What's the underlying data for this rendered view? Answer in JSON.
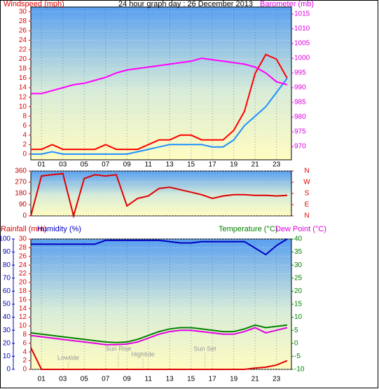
{
  "chart_data": [
    {
      "type": "line",
      "title": "24 hour graph day : 26 December 2013",
      "y_label": "Windspeed (mph)",
      "y2_label": "Barometer (mb)",
      "x": [
        0,
        1,
        2,
        3,
        4,
        5,
        6,
        7,
        8,
        9,
        10,
        11,
        12,
        13,
        14,
        15,
        16,
        17,
        18,
        19,
        20,
        21,
        22,
        23,
        24
      ],
      "xlim": [
        0,
        24.4
      ],
      "xticks": [
        {
          "value": 1,
          "label": "01"
        },
        {
          "value": 3,
          "label": "03"
        },
        {
          "value": 5,
          "label": "05"
        },
        {
          "value": 7,
          "label": "07"
        },
        {
          "value": 9,
          "label": "09"
        },
        {
          "value": 11,
          "label": "11"
        },
        {
          "value": 13,
          "label": "13"
        },
        {
          "value": 15,
          "label": "15"
        },
        {
          "value": 17,
          "label": "17"
        },
        {
          "value": 19,
          "label": "19"
        },
        {
          "value": 21,
          "label": "21"
        },
        {
          "value": 23,
          "label": "23"
        }
      ],
      "ylim": [
        -1.2,
        31
      ],
      "yticks": [
        0,
        2,
        4,
        6,
        8,
        10,
        12,
        14,
        16,
        18,
        20,
        22,
        24,
        26,
        28,
        30
      ],
      "y2lim": [
        965.5,
        1017.4
      ],
      "y2ticks": [
        970,
        975,
        980,
        985,
        990,
        995,
        1000,
        1005,
        1010,
        1015
      ],
      "axis_colors": {
        "y": "#e00000",
        "y2": "#e000e0"
      },
      "grid": true,
      "series": [
        {
          "color": "#ff0000",
          "values": [
            1,
            1,
            2,
            1,
            1,
            1,
            1,
            2,
            1,
            1,
            1,
            2,
            3,
            3,
            4,
            4,
            3,
            3,
            3,
            5,
            9,
            17,
            21,
            20,
            16
          ]
        },
        {
          "color": "#1e90ff",
          "values": [
            0,
            0,
            0.5,
            0,
            0,
            0,
            0,
            0,
            0,
            0,
            0.5,
            1,
            1.5,
            2,
            2,
            2,
            2,
            1.5,
            1.5,
            3,
            6,
            8,
            10,
            13,
            16
          ]
        },
        {
          "color": "#ff00ff",
          "axis": "y2",
          "values": [
            988,
            988,
            989,
            990,
            991,
            991.5,
            992.5,
            993.5,
            995,
            996,
            996.5,
            997,
            997.5,
            998,
            998.5,
            999,
            1000,
            999.5,
            999,
            998.5,
            998,
            997,
            995,
            992,
            991
          ]
        }
      ]
    },
    {
      "type": "line",
      "x": [
        0,
        1,
        2,
        3,
        4,
        5,
        6,
        7,
        8,
        9,
        10,
        11,
        12,
        13,
        14,
        15,
        16,
        17,
        18,
        19,
        20,
        21,
        22,
        23,
        24
      ],
      "xlim": [
        0,
        24.4
      ],
      "ylim": [
        0,
        360
      ],
      "yticks": [
        0,
        90,
        180,
        270,
        360
      ],
      "y2lim": [
        0,
        360
      ],
      "y2ticks": [
        {
          "value": 360,
          "label": "N"
        },
        {
          "value": 270,
          "label": "W"
        },
        {
          "value": 180,
          "label": "S"
        },
        {
          "value": 90,
          "label": "E"
        },
        {
          "value": 0,
          "label": "N"
        }
      ],
      "axis_colors": {
        "y": "#c00000",
        "y2": "#e00000"
      },
      "grid": true,
      "series": [
        {
          "color": "#e00000",
          "values": [
            0,
            320,
            330,
            340,
            0,
            300,
            330,
            320,
            330,
            80,
            140,
            160,
            220,
            230,
            210,
            190,
            170,
            140,
            160,
            170,
            170,
            165,
            165,
            160,
            165
          ]
        }
      ]
    },
    {
      "type": "line",
      "x": [
        0,
        1,
        2,
        3,
        4,
        5,
        6,
        7,
        8,
        9,
        10,
        11,
        12,
        13,
        14,
        15,
        16,
        17,
        18,
        19,
        20,
        21,
        22,
        23,
        24
      ],
      "xlim": [
        0,
        24.4
      ],
      "xticks": [
        {
          "value": 1,
          "label": "01"
        },
        {
          "value": 3,
          "label": "03"
        },
        {
          "value": 5,
          "label": "05"
        },
        {
          "value": 7,
          "label": "07"
        },
        {
          "value": 9,
          "label": "09"
        },
        {
          "value": 11,
          "label": "11"
        },
        {
          "value": 13,
          "label": "13"
        },
        {
          "value": 15,
          "label": "15"
        },
        {
          "value": 17,
          "label": "17"
        },
        {
          "value": 19,
          "label": "19"
        },
        {
          "value": 21,
          "label": "21"
        },
        {
          "value": 23,
          "label": "23"
        }
      ],
      "ylim": [
        0,
        30
      ],
      "yticks": [
        0,
        2,
        4,
        6,
        8,
        10,
        12,
        14,
        16,
        18,
        20,
        22,
        24,
        26,
        28,
        30
      ],
      "y2lim": [
        -10,
        40
      ],
      "y2ticks": [
        -10,
        -5,
        0,
        5,
        10,
        15,
        20,
        25,
        30,
        35,
        40
      ],
      "y3lim": [
        0,
        100
      ],
      "y3ticks": [
        0,
        10,
        20,
        30,
        40,
        50,
        60,
        70,
        80,
        90,
        100
      ],
      "axis_colors": {
        "y": "#e00000",
        "y2": "#008000",
        "y3": "#0000c0"
      },
      "grid": true,
      "series": [
        {
          "name": "Rainfall (mm)",
          "color": "#e00000",
          "values": [
            5,
            0,
            0,
            0,
            0,
            0,
            0,
            0,
            0,
            0,
            0,
            0,
            0,
            0,
            0,
            0,
            0,
            0,
            0,
            0,
            0,
            0.3,
            0.5,
            1,
            2
          ]
        },
        {
          "name": "Humidity (%)",
          "color": "#0000c0",
          "axis": "y3",
          "values": [
            96,
            96,
            96,
            96,
            96,
            96,
            96,
            99,
            99,
            99,
            99,
            99,
            99,
            98,
            97,
            97,
            98,
            98,
            98,
            98,
            98,
            93,
            88,
            95,
            100
          ]
        },
        {
          "name": "Temperature (°C)",
          "color": "#008000",
          "axis": "y2",
          "values": [
            4,
            3.5,
            3,
            2.5,
            2,
            1.5,
            1,
            0.5,
            0.3,
            0.5,
            1.5,
            3,
            4.5,
            5.5,
            6,
            6,
            5.5,
            5,
            4.5,
            4.5,
            5.5,
            7,
            6,
            6.5,
            7
          ]
        },
        {
          "name": "Dew Point (°C)",
          "color": "#e000e0",
          "axis": "y2",
          "values": [
            3,
            2.5,
            2,
            1.5,
            1,
            0.5,
            0,
            -0.5,
            -0.5,
            -0.3,
            0.5,
            2,
            3.5,
            4.5,
            5,
            5,
            4.5,
            4,
            3.5,
            3.5,
            4.5,
            6,
            4,
            5,
            6
          ]
        }
      ],
      "annotations": [
        {
          "text": "Lowtide",
          "x": 3.5
        },
        {
          "text": "Sun Rise",
          "x": 8.2
        },
        {
          "text": "Hightide",
          "x": 10.5
        },
        {
          "text": "Sun Set",
          "x": 16.3
        }
      ]
    }
  ]
}
